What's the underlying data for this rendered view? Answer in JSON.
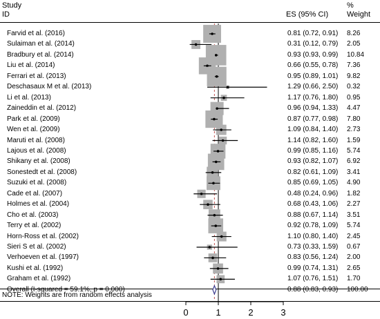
{
  "header": {
    "study_label": "Study",
    "id_label": "ID",
    "es_label": "ES (95% CI)",
    "pct_label": "%",
    "weight_label": "Weight"
  },
  "note": "NOTE: Weights are from random effects analysis",
  "chart_data": {
    "type": "forest",
    "x_ticks": [
      "0",
      "1",
      "2",
      "3"
    ],
    "xlim": [
      -0.2,
      3.3
    ],
    "null_line": 1,
    "colors": {
      "box": "#b0b0b0",
      "line": "#000000",
      "diamond": "#3b3b8f",
      "ref": "#c0504d"
    },
    "studies": [
      {
        "id": "Farvid et al. (2016)",
        "es": 0.81,
        "lo": 0.72,
        "hi": 0.91,
        "weight": 8.26,
        "es_text": "0.81 (0.72, 0.91)",
        "w_text": "8.26"
      },
      {
        "id": "Sulaiman et al. (2014)",
        "es": 0.31,
        "lo": 0.12,
        "hi": 0.79,
        "weight": 2.05,
        "es_text": "0.31 (0.12, 0.79)",
        "w_text": "2.05"
      },
      {
        "id": "Bradbury et al. (2014)",
        "es": 0.93,
        "lo": 0.93,
        "hi": 0.99,
        "weight": 10.84,
        "es_text": "0.93 (0.93, 0.99)",
        "w_text": "10.84"
      },
      {
        "id": "Liu et al. (2014)",
        "es": 0.66,
        "lo": 0.55,
        "hi": 0.78,
        "weight": 7.36,
        "es_text": "0.66 (0.55, 0.78)",
        "w_text": "7.36"
      },
      {
        "id": "Ferrari et al. (2013)",
        "es": 0.95,
        "lo": 0.89,
        "hi": 1.01,
        "weight": 9.82,
        "es_text": "0.95 (0.89, 1.01)",
        "w_text": "9.82"
      },
      {
        "id": "Deschasaux M et al. (2013)",
        "es": 1.29,
        "lo": 0.66,
        "hi": 2.5,
        "weight": 0.32,
        "es_text": "1.29 (0.66, 2.50)",
        "w_text": "0.32"
      },
      {
        "id": "Li  et al. (2013)",
        "es": 1.17,
        "lo": 0.76,
        "hi": 1.8,
        "weight": 0.95,
        "es_text": "1.17 (0.76, 1.80)",
        "w_text": "0.95"
      },
      {
        "id": "Zaineddin et al. (2012)",
        "es": 0.96,
        "lo": 0.94,
        "hi": 1.33,
        "weight": 4.47,
        "es_text": "0.96 (0.94, 1.33)",
        "w_text": "4.47"
      },
      {
        "id": "Park et al. (2009)",
        "es": 0.87,
        "lo": 0.77,
        "hi": 0.98,
        "weight": 7.8,
        "es_text": "0.87 (0.77, 0.98)",
        "w_text": "7.80"
      },
      {
        "id": "Wen et al. (2009)",
        "es": 1.09,
        "lo": 0.84,
        "hi": 1.4,
        "weight": 2.73,
        "es_text": "1.09 (0.84, 1.40)",
        "w_text": "2.73"
      },
      {
        "id": "Maruti et al. (2008)",
        "es": 1.14,
        "lo": 0.82,
        "hi": 1.6,
        "weight": 1.59,
        "es_text": "1.14 (0.82, 1.60)",
        "w_text": "1.59"
      },
      {
        "id": "Lajous et al. (2008)",
        "es": 0.99,
        "lo": 0.85,
        "hi": 1.16,
        "weight": 5.74,
        "es_text": "0.99 (0.85, 1.16)",
        "w_text": "5.74"
      },
      {
        "id": "Shikany et al. (2008)",
        "es": 0.93,
        "lo": 0.82,
        "hi": 1.07,
        "weight": 6.92,
        "es_text": "0.93 (0.82, 1.07)",
        "w_text": "6.92"
      },
      {
        "id": "Sonestedt et al. (2008)",
        "es": 0.82,
        "lo": 0.61,
        "hi": 1.09,
        "weight": 3.41,
        "es_text": "0.82 (0.61, 1.09)",
        "w_text": "3.41"
      },
      {
        "id": "Suzuki et al. (2008)",
        "es": 0.85,
        "lo": 0.69,
        "hi": 1.05,
        "weight": 4.9,
        "es_text": "0.85 (0.69, 1.05)",
        "w_text": "4.90"
      },
      {
        "id": "Cade et al. (2007)",
        "es": 0.48,
        "lo": 0.24,
        "hi": 0.96,
        "weight": 1.82,
        "es_text": "0.48 (0.24, 0.96)",
        "w_text": "1.82"
      },
      {
        "id": "Holmes et al. (2004)",
        "es": 0.68,
        "lo": 0.43,
        "hi": 1.06,
        "weight": 2.27,
        "es_text": "0.68 (0.43, 1.06)",
        "w_text": "2.27"
      },
      {
        "id": "Cho et al. (2003)",
        "es": 0.88,
        "lo": 0.67,
        "hi": 1.14,
        "weight": 3.51,
        "es_text": "0.88 (0.67, 1.14)",
        "w_text": "3.51"
      },
      {
        "id": "Terry et al. (2002)",
        "es": 0.92,
        "lo": 0.78,
        "hi": 1.09,
        "weight": 5.74,
        "es_text": "0.92 (0.78, 1.09)",
        "w_text": "5.74"
      },
      {
        "id": "Horn-Ross et al. (2002)",
        "es": 1.1,
        "lo": 0.8,
        "hi": 1.4,
        "weight": 2.45,
        "es_text": "1.10 (0.80, 1.40)",
        "w_text": "2.45"
      },
      {
        "id": "Sieri S et al. (2002)",
        "es": 0.73,
        "lo": 0.33,
        "hi": 1.59,
        "weight": 0.67,
        "es_text": "0.73 (0.33, 1.59)",
        "w_text": "0.67"
      },
      {
        "id": "Verhoeven et al. (1997)",
        "es": 0.83,
        "lo": 0.56,
        "hi": 1.24,
        "weight": 2.0,
        "es_text": "0.83 (0.56, 1.24)",
        "w_text": "2.00"
      },
      {
        "id": "Kushi et al. (1992)",
        "es": 0.99,
        "lo": 0.74,
        "hi": 1.31,
        "weight": 2.65,
        "es_text": "0.99 (0.74, 1.31)",
        "w_text": "2.65"
      },
      {
        "id": "Graham et al. (1992)",
        "es": 1.07,
        "lo": 0.76,
        "hi": 1.51,
        "weight": 1.7,
        "es_text": "1.07 (0.76, 1.51)",
        "w_text": "1.70"
      }
    ],
    "overall": {
      "label": "Overall  (I-squared = 59.1%, p = 0.000)",
      "es": 0.88,
      "lo": 0.83,
      "hi": 0.93,
      "weight": 100.0,
      "es_text": "0.88 (0.83, 0.93)",
      "w_text": "100.00"
    }
  }
}
